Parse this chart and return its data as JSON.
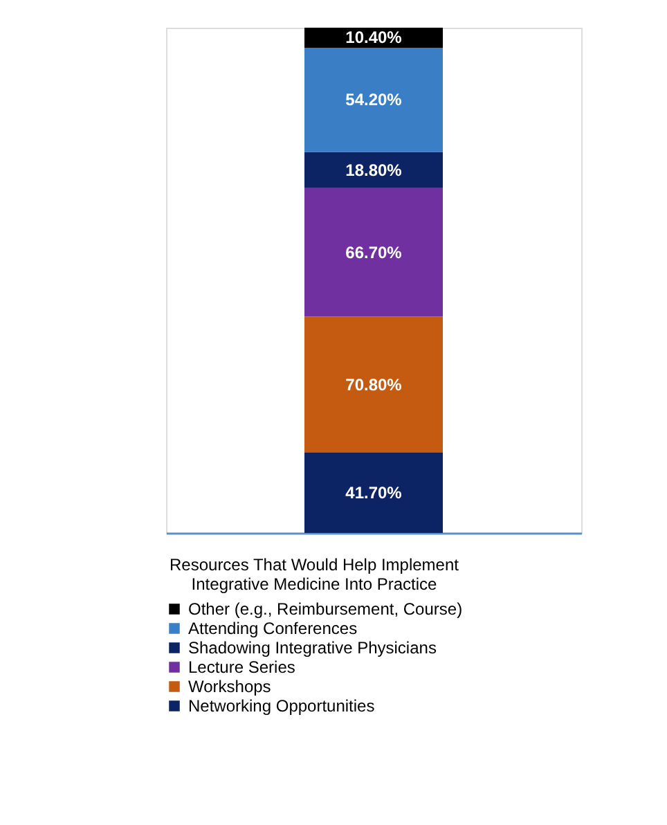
{
  "chart_data": {
    "type": "bar",
    "stacked": true,
    "categories": [
      null
    ],
    "legend_title": "Resources That Would Help Implement Integrative Medicine Into Practice",
    "legend": "bottom",
    "tick_labels": false,
    "series": [
      {
        "name": "Networking Opportunities",
        "color": "#0c2364",
        "values": [
          41.7
        ],
        "value_labels": [
          "41.70%"
        ]
      },
      {
        "name": "Workshops",
        "color": "#c55a11",
        "values": [
          70.8
        ],
        "value_labels": [
          "70.80%"
        ]
      },
      {
        "name": "Lecture Series",
        "color": "#7030a0",
        "values": [
          66.7
        ],
        "value_labels": [
          "66.70%"
        ]
      },
      {
        "name": "Shadowing Integrative Physicians",
        "color": "#0c2364",
        "values": [
          18.8
        ],
        "value_labels": [
          "18.80%"
        ]
      },
      {
        "name": "Attending Conferences",
        "color": "#3a7ec6",
        "values": [
          54.2
        ],
        "value_labels": [
          "54.20%"
        ]
      },
      {
        "name": "Other (e.g., Reimbursement, Course)",
        "color": "#000000",
        "values": [
          10.4
        ],
        "value_labels": [
          "10.40%"
        ]
      }
    ]
  }
}
